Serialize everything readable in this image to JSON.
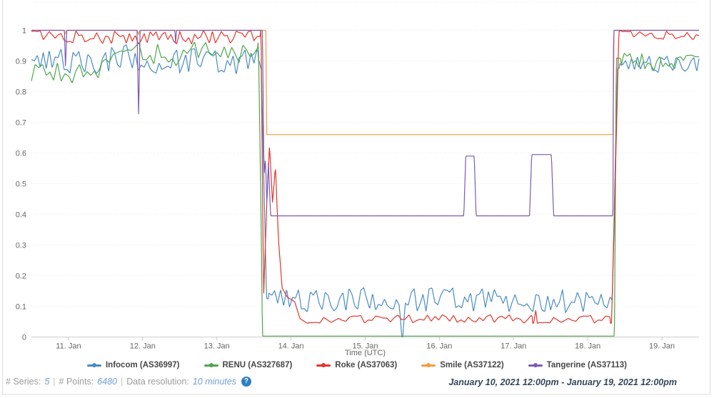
{
  "chart_data": {
    "type": "line",
    "title": "",
    "xlabel": "Time (UTC)",
    "ylim": [
      0,
      1.1
    ],
    "grid": "horizontal-dashed",
    "legend_position": "bottom-center",
    "time_range_days": 9,
    "x_start": "January 10, 2021 12:00pm",
    "x_end": "January 19, 2021 12:00pm",
    "x_ticks": [
      {
        "label": "11. Jan",
        "t": 0.5
      },
      {
        "label": "12. Jan",
        "t": 1.5
      },
      {
        "label": "13. Jan",
        "t": 2.5
      },
      {
        "label": "14. Jan",
        "t": 3.5
      },
      {
        "label": "15. Jan",
        "t": 4.5
      },
      {
        "label": "16. Jan",
        "t": 5.5
      },
      {
        "label": "17. Jan",
        "t": 6.5
      },
      {
        "label": "18. Jan",
        "t": 7.5
      },
      {
        "label": "19. Jan",
        "t": 8.5
      }
    ],
    "y_ticks": [
      {
        "label": "1",
        "v": 1.0
      },
      {
        "label": "0.9",
        "v": 0.9
      },
      {
        "label": "0.8",
        "v": 0.8
      },
      {
        "label": "0.7",
        "v": 0.7
      },
      {
        "label": "0.6",
        "v": 0.6
      },
      {
        "label": "0.5",
        "v": 0.5
      },
      {
        "label": "0.4",
        "v": 0.4
      },
      {
        "label": "0.3",
        "v": 0.3
      },
      {
        "label": "0.2",
        "v": 0.2
      },
      {
        "label": "0.1",
        "v": 0.1
      },
      {
        "label": "0",
        "v": 0.0
      }
    ],
    "series": [
      {
        "id": "infocom",
        "name": "Infocom (AS36997)",
        "color": "#4a8bc4",
        "seed": 11,
        "anchors": [
          [
            0,
            0.885
          ],
          [
            0.35,
            0.905
          ],
          [
            0.8,
            0.895
          ],
          [
            1.25,
            0.915
          ],
          [
            1.7,
            0.895
          ],
          [
            2.1,
            0.905
          ],
          [
            2.55,
            0.89
          ],
          [
            3.07,
            0.9
          ],
          [
            3.1,
            0.87
          ],
          [
            3.17,
            0.125
          ],
          [
            3.5,
            0.12
          ],
          [
            4.96,
            0.125
          ],
          [
            5.0,
            0.0
          ],
          [
            5.04,
            0.125
          ],
          [
            6.0,
            0.12
          ],
          [
            7.0,
            0.115
          ],
          [
            7.83,
            0.12
          ],
          [
            7.87,
            0.55
          ],
          [
            7.9,
            0.875
          ],
          [
            8.2,
            0.89
          ],
          [
            9,
            0.895
          ]
        ],
        "noise": [
          {
            "t0": 0,
            "t1": 3.06,
            "amp": 0.042,
            "period": 0.04,
            "mode": "sym"
          },
          {
            "t0": 3.2,
            "t1": 7.82,
            "amp": 0.04,
            "period": 0.04,
            "mode": "sym"
          },
          {
            "t0": 7.93,
            "t1": 9,
            "amp": 0.03,
            "period": 0.04,
            "mode": "sym"
          }
        ]
      },
      {
        "id": "renu",
        "name": "RENU (AS327687)",
        "color": "#4ca64c",
        "seed": 23,
        "anchors": [
          [
            0,
            0.865
          ],
          [
            0.5,
            0.86
          ],
          [
            0.9,
            0.875
          ],
          [
            1.4,
            0.93
          ],
          [
            1.9,
            0.915
          ],
          [
            2.35,
            0.945
          ],
          [
            2.7,
            0.92
          ],
          [
            3.0,
            0.945
          ],
          [
            3.06,
            0.96
          ],
          [
            3.09,
            0.5
          ],
          [
            3.115,
            0.003
          ],
          [
            7.86,
            0.003
          ],
          [
            7.885,
            0.91
          ],
          [
            8.3,
            0.895
          ],
          [
            9,
            0.9
          ]
        ],
        "noise": [
          {
            "t0": 0,
            "t1": 3.05,
            "amp": 0.035,
            "period": 0.05,
            "mode": "sym"
          },
          {
            "t0": 7.95,
            "t1": 9,
            "amp": 0.028,
            "period": 0.04,
            "mode": "sym"
          }
        ]
      },
      {
        "id": "roke",
        "name": "Roke (AS37063)",
        "color": "#e2352b",
        "seed": 37,
        "anchors": [
          [
            0,
            1
          ],
          [
            3.095,
            1
          ],
          [
            3.13,
            0.13
          ],
          [
            3.175,
            0.45
          ],
          [
            3.21,
            0.625
          ],
          [
            3.25,
            0.44
          ],
          [
            3.29,
            0.555
          ],
          [
            3.33,
            0.32
          ],
          [
            3.38,
            0.16
          ],
          [
            3.45,
            0.13
          ],
          [
            3.55,
            0.115
          ],
          [
            3.62,
            0.06
          ],
          [
            3.72,
            0.045
          ],
          [
            6.77,
            0.045
          ],
          [
            6.8,
            0.088
          ],
          [
            6.82,
            0.045
          ],
          [
            7.82,
            0.045
          ],
          [
            7.855,
            0.35
          ],
          [
            7.92,
            0.998
          ],
          [
            9,
            0.998
          ]
        ],
        "noise": [
          {
            "t0": 0,
            "t1": 3.09,
            "amp": 0.045,
            "period": 0.04,
            "mode": "down"
          },
          {
            "t0": 3.74,
            "t1": 6.75,
            "amp": 0.028,
            "period": 0.05,
            "mode": "up"
          },
          {
            "t0": 6.84,
            "t1": 7.8,
            "amp": 0.028,
            "period": 0.05,
            "mode": "up"
          },
          {
            "t0": 7.96,
            "t1": 9,
            "amp": 0.03,
            "period": 0.04,
            "mode": "down"
          }
        ]
      },
      {
        "id": "smile",
        "name": "Smile (AS37122)",
        "color": "#f79a3b",
        "seed": 5,
        "anchors": [
          [
            0,
            1
          ],
          [
            0.44,
            1
          ],
          [
            0.455,
            0.985
          ],
          [
            0.47,
            1
          ],
          [
            1.43,
            1
          ],
          [
            1.445,
            0.985
          ],
          [
            1.46,
            1
          ],
          [
            3.16,
            1
          ],
          [
            3.172,
            0.66
          ],
          [
            7.843,
            0.66
          ],
          [
            7.853,
            1
          ],
          [
            9,
            1
          ]
        ],
        "noise": []
      },
      {
        "id": "tangerine",
        "name": "Tangerine (AS37113)",
        "color": "#7d5ab5",
        "seed": 9,
        "anchors": [
          [
            0,
            1
          ],
          [
            0.445,
            1
          ],
          [
            0.46,
            0.87
          ],
          [
            0.475,
            1
          ],
          [
            1.425,
            1
          ],
          [
            1.445,
            0.72
          ],
          [
            1.465,
            1
          ],
          [
            1.935,
            1
          ],
          [
            1.945,
            0.955
          ],
          [
            1.955,
            1
          ],
          [
            3.115,
            1
          ],
          [
            3.135,
            0.525
          ],
          [
            3.155,
            0.58
          ],
          [
            3.175,
            0.43
          ],
          [
            3.195,
            0.57
          ],
          [
            3.225,
            0.395
          ],
          [
            5.83,
            0.395
          ],
          [
            5.855,
            0.59
          ],
          [
            5.97,
            0.59
          ],
          [
            5.995,
            0.395
          ],
          [
            6.715,
            0.395
          ],
          [
            6.745,
            0.595
          ],
          [
            7.01,
            0.595
          ],
          [
            7.04,
            0.395
          ],
          [
            7.84,
            0.395
          ],
          [
            7.848,
            1
          ],
          [
            9,
            1
          ]
        ],
        "noise": []
      }
    ]
  },
  "footer": {
    "series_label": "# Series:",
    "series_value": "5",
    "separator": "|",
    "points_label": "# Points:",
    "points_value": "6480",
    "resolution_label": "Data resolution:",
    "resolution_value": "10 minutes",
    "help_icon": "?",
    "date_range": "January 10, 2021 12:00pm - January 19, 2021 12:00pm"
  },
  "colors": {
    "grid": "#e9e9e9",
    "axis": "#cfcfcf",
    "tick": "#c9c9c9",
    "axis_text": "#666666",
    "panel_border": "#dcdcdc"
  }
}
